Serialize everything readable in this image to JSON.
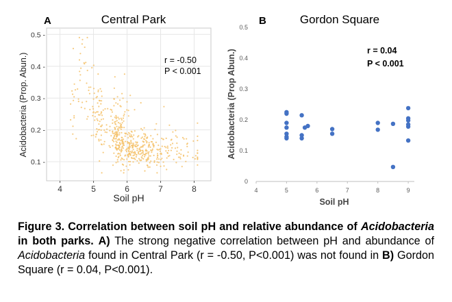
{
  "chart_data": [
    {
      "type": "scatter",
      "panel_label": "A",
      "title": "Central Park",
      "xlabel": "Soil pH",
      "ylabel": "Acidobacteria (Prop. Abun.)",
      "xlim": [
        3.6,
        8.5
      ],
      "ylim": [
        0.04,
        0.52
      ],
      "x_ticks": [
        4,
        5,
        6,
        7,
        8
      ],
      "y_ticks": [
        0.1,
        0.2,
        0.3,
        0.4,
        0.5
      ],
      "y_tick_labels": [
        "0.1 -",
        "0.2 -",
        "0.3 -",
        "0.4 -",
        "0.5 -"
      ],
      "grid": true,
      "point_color": "#f5c26b",
      "annotation": [
        "r = -0.50",
        "P < 0.001"
      ],
      "n_points_approx": 600,
      "x": [
        4.3,
        4.6,
        4.7,
        4.8,
        4.9,
        5.0,
        5.1,
        5.2,
        5.3,
        5.5,
        5.8,
        6.0,
        6.2,
        6.5,
        6.8,
        7.0,
        7.2,
        7.5,
        7.8,
        8.0
      ],
      "y": [
        0.25,
        0.36,
        0.4,
        0.32,
        0.3,
        0.28,
        0.25,
        0.23,
        0.22,
        0.19,
        0.17,
        0.15,
        0.14,
        0.14,
        0.13,
        0.13,
        0.14,
        0.14,
        0.13,
        0.13
      ]
    },
    {
      "type": "scatter",
      "panel_label": "B",
      "title": "Gordon Square",
      "xlabel": "Soil pH",
      "ylabel": "Acidobacteria (Prop Abun.)",
      "xlim": [
        4,
        9.2
      ],
      "ylim": [
        0,
        0.5
      ],
      "x_ticks": [
        4,
        5,
        6,
        7,
        8,
        9
      ],
      "y_ticks": [
        0,
        0.1,
        0.2,
        0.3,
        0.4,
        0.5
      ],
      "y_tick_labels": [
        "0",
        "0.1",
        "0.2",
        "0.3",
        "0.4",
        "0.5"
      ],
      "grid": false,
      "point_color": "#4472c4",
      "annotation": [
        "r = 0.04",
        "P < 0.001"
      ],
      "x": [
        5.0,
        5.0,
        5.0,
        5.0,
        5.0,
        5.0,
        5.0,
        5.5,
        5.5,
        5.5,
        5.6,
        5.7,
        6.5,
        6.5,
        8.0,
        8.0,
        8.5,
        8.5,
        9.0,
        9.0,
        9.0,
        9.0,
        9.0,
        9.0
      ],
      "y": [
        0.225,
        0.22,
        0.19,
        0.175,
        0.155,
        0.145,
        0.14,
        0.215,
        0.15,
        0.14,
        0.175,
        0.18,
        0.17,
        0.155,
        0.19,
        0.168,
        0.187,
        0.047,
        0.238,
        0.205,
        0.198,
        0.185,
        0.178,
        0.133
      ]
    }
  ],
  "caption": {
    "lead_bold": "Figure 3. Correlation between soil pH and relative abundance of ",
    "lead_italic": "Acidobacteria",
    "lead_bold_end": " in both parks.",
    "label_a": "A)",
    "text_1": " The strong negative correlation between pH and abundance of ",
    "italic_1": "Acidobacteria",
    "text_2": " found in Central Park (r = -0.50, P<0.001) was not found in ",
    "label_b": "B)",
    "text_3": " Gordon Square (r = 0.04, P<0.001)."
  }
}
